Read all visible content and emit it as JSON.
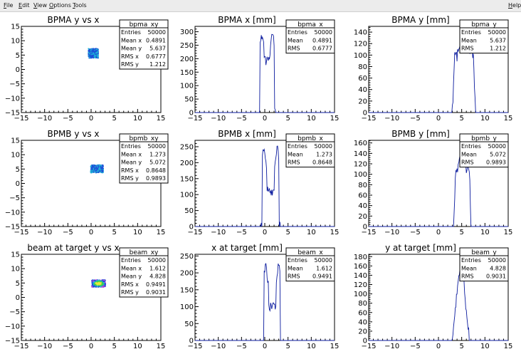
{
  "menu": {
    "file": {
      "mnemonic": "F",
      "rest": "ile"
    },
    "edit": {
      "mnemonic": "E",
      "rest": "dit"
    },
    "view": {
      "mnemonic": "V",
      "rest": "iew"
    },
    "options": {
      "mnemonic": "O",
      "rest": "ptions"
    },
    "tools": {
      "mnemonic": "T",
      "rest": "ools"
    },
    "help": {
      "mnemonic": "H",
      "rest": "elp"
    }
  },
  "colors": {
    "hist_line": "#0b1b9e",
    "scatter_blue": "#1e50d8",
    "scatter_cyan": "#1fb5d6",
    "scatter_green": "#3dd14b",
    "scatter_yellow": "#e8e83a",
    "scatter_magenta": "#d23fd6"
  },
  "chart_data": [
    {
      "type": "heatmap",
      "title": "BPMA y vs x",
      "xlim": [
        -15,
        15
      ],
      "ylim": [
        -15,
        15
      ],
      "x_ticks": [
        "−15",
        "−10",
        "−5",
        "0",
        "5",
        "10",
        "15"
      ],
      "y_ticks": [
        "15",
        "10",
        "5",
        "0",
        "−5",
        "−10",
        "−15"
      ],
      "cluster": {
        "x_center": 0.4891,
        "y_center": 5.637,
        "x_rms": 0.6777,
        "y_rms": 1.212,
        "intensity": "low"
      },
      "stats": {
        "name": "bpma_xy",
        "rows": [
          [
            "Entries",
            "50000"
          ],
          [
            "Mean x",
            "0.4891"
          ],
          [
            "Mean y",
            "5.637"
          ],
          [
            "RMS x",
            "0.6777"
          ],
          [
            "RMS y",
            "1.212"
          ]
        ]
      }
    },
    {
      "type": "line",
      "title": "BPMA x [mm]",
      "xlim": [
        -15,
        15
      ],
      "ylim": [
        0,
        320
      ],
      "x_ticks": [
        "−15",
        "−10",
        "−5",
        "0",
        "5",
        "10",
        "15"
      ],
      "y_ticks": [
        "0",
        "50",
        "100",
        "150",
        "200",
        "250",
        "300"
      ],
      "peaks": {
        "left_x": -0.7,
        "right_x": 1.7,
        "low": 0.0,
        "high": 300,
        "valley": 200,
        "width": 0.55
      },
      "stats": {
        "name": "bpma_x",
        "rows": [
          [
            "Entries",
            "50000"
          ],
          [
            "Mean",
            "0.4891"
          ],
          [
            "RMS",
            "0.6777"
          ]
        ]
      }
    },
    {
      "type": "line",
      "title": "BPMA y [mm]",
      "xlim": [
        -15,
        15
      ],
      "ylim": [
        0,
        150
      ],
      "x_ticks": [
        "−15",
        "−10",
        "−5",
        "0",
        "5",
        "10",
        "15"
      ],
      "y_ticks": [
        "0",
        "20",
        "40",
        "60",
        "80",
        "100",
        "120",
        "140"
      ],
      "shape": {
        "start": 3.0,
        "end": 8.0,
        "plateau": 95,
        "high": 140
      },
      "stats": {
        "name": "bpma_y",
        "rows": [
          [
            "Entries",
            "50000"
          ],
          [
            "Mean",
            "5.637"
          ],
          [
            "RMS",
            "1.212"
          ]
        ]
      }
    },
    {
      "type": "heatmap",
      "title": "BPMB y vs x",
      "xlim": [
        -15,
        15
      ],
      "ylim": [
        -15,
        15
      ],
      "x_ticks": [
        "−15",
        "−10",
        "−5",
        "0",
        "5",
        "10",
        "15"
      ],
      "y_ticks": [
        "15",
        "10",
        "5",
        "0",
        "−5",
        "−10",
        "−15"
      ],
      "cluster": {
        "x_center": 1.273,
        "y_center": 5.072,
        "x_rms": 0.8648,
        "y_rms": 0.9893,
        "intensity": "low"
      },
      "stats": {
        "name": "bpmb_xy",
        "rows": [
          [
            "Entries",
            "50000"
          ],
          [
            "Mean x",
            "1.273"
          ],
          [
            "Mean y",
            "5.072"
          ],
          [
            "RMS x",
            "0.8648"
          ],
          [
            "RMS y",
            "0.9893"
          ]
        ]
      }
    },
    {
      "type": "line",
      "title": "BPMB x [mm]",
      "xlim": [
        -15,
        15
      ],
      "ylim": [
        0,
        270
      ],
      "x_ticks": [
        "−15",
        "−10",
        "−5",
        "0",
        "5",
        "10",
        "15"
      ],
      "y_ticks": [
        "0",
        "50",
        "100",
        "150",
        "200",
        "250"
      ],
      "peaks": {
        "left_x": -0.2,
        "right_x": 2.7,
        "low": 0.0,
        "high": 260,
        "valley": 110,
        "width": 0.65
      },
      "stats": {
        "name": "bpmb_x",
        "rows": [
          [
            "Entries",
            "50000"
          ],
          [
            "Mean",
            "1.273"
          ],
          [
            "RMS",
            "0.8648"
          ]
        ]
      }
    },
    {
      "type": "line",
      "title": "BPMB y [mm]",
      "xlim": [
        -15,
        15
      ],
      "ylim": [
        0,
        165
      ],
      "x_ticks": [
        "−15",
        "−10",
        "−5",
        "0",
        "5",
        "10",
        "15"
      ],
      "y_ticks": [
        "0",
        "20",
        "40",
        "60",
        "80",
        "100",
        "120",
        "140",
        "160"
      ],
      "shape": {
        "start": 3.3,
        "end": 7.0,
        "plateau": 100,
        "high": 150
      },
      "stats": {
        "name": "bpmb_y",
        "rows": [
          [
            "Entries",
            "50000"
          ],
          [
            "Mean",
            "5.072"
          ],
          [
            "RMS",
            "0.9893"
          ]
        ]
      }
    },
    {
      "type": "heatmap",
      "title": "beam at target y vs x",
      "xlim": [
        -15,
        15
      ],
      "ylim": [
        -15,
        15
      ],
      "x_ticks": [
        "−15",
        "−10",
        "−5",
        "0",
        "5",
        "10",
        "15"
      ],
      "y_ticks": [
        "15",
        "10",
        "5",
        "0",
        "−5",
        "−10",
        "−15"
      ],
      "cluster": {
        "x_center": 1.612,
        "y_center": 4.828,
        "x_rms": 0.9491,
        "y_rms": 0.9031,
        "intensity": "high"
      },
      "stats": {
        "name": "beam_xy",
        "rows": [
          [
            "Entries",
            "50000"
          ],
          [
            "Mean x",
            "1.612"
          ],
          [
            "Mean y",
            "4.828"
          ],
          [
            "RMS x",
            "0.9491"
          ],
          [
            "RMS y",
            "0.9031"
          ]
        ]
      }
    },
    {
      "type": "line",
      "title": "x at target [mm]",
      "xlim": [
        -15,
        15
      ],
      "ylim": [
        0,
        255
      ],
      "x_ticks": [
        "−15",
        "−10",
        "−5",
        "0",
        "5",
        "10",
        "15"
      ],
      "y_ticks": [
        "0",
        "50",
        "100",
        "150",
        "200",
        "250"
      ],
      "peaks": {
        "left_x": 0.2,
        "right_x": 3.0,
        "low": 0.0,
        "high": 235,
        "valley": 100,
        "width": 0.6
      },
      "stats": {
        "name": "beam_x",
        "rows": [
          [
            "Entries",
            "50000"
          ],
          [
            "Mean",
            "1.612"
          ],
          [
            "RMS",
            "0.9491"
          ]
        ]
      }
    },
    {
      "type": "line",
      "title": "y at target [mm]",
      "xlim": [
        -15,
        15
      ],
      "ylim": [
        0,
        185
      ],
      "x_ticks": [
        "−15",
        "−10",
        "−5",
        "0",
        "5",
        "10",
        "15"
      ],
      "y_ticks": [
        "0",
        "20",
        "40",
        "60",
        "80",
        "100",
        "120",
        "140",
        "160",
        "180"
      ],
      "shape": {
        "start": 2.9,
        "end": 6.8,
        "plateau": 0,
        "high": 160,
        "bell": true
      },
      "stats": {
        "name": "beam_y",
        "rows": [
          [
            "Entries",
            "50000"
          ],
          [
            "Mean",
            "4.828"
          ],
          [
            "RMS",
            "0.9031"
          ]
        ]
      }
    }
  ]
}
